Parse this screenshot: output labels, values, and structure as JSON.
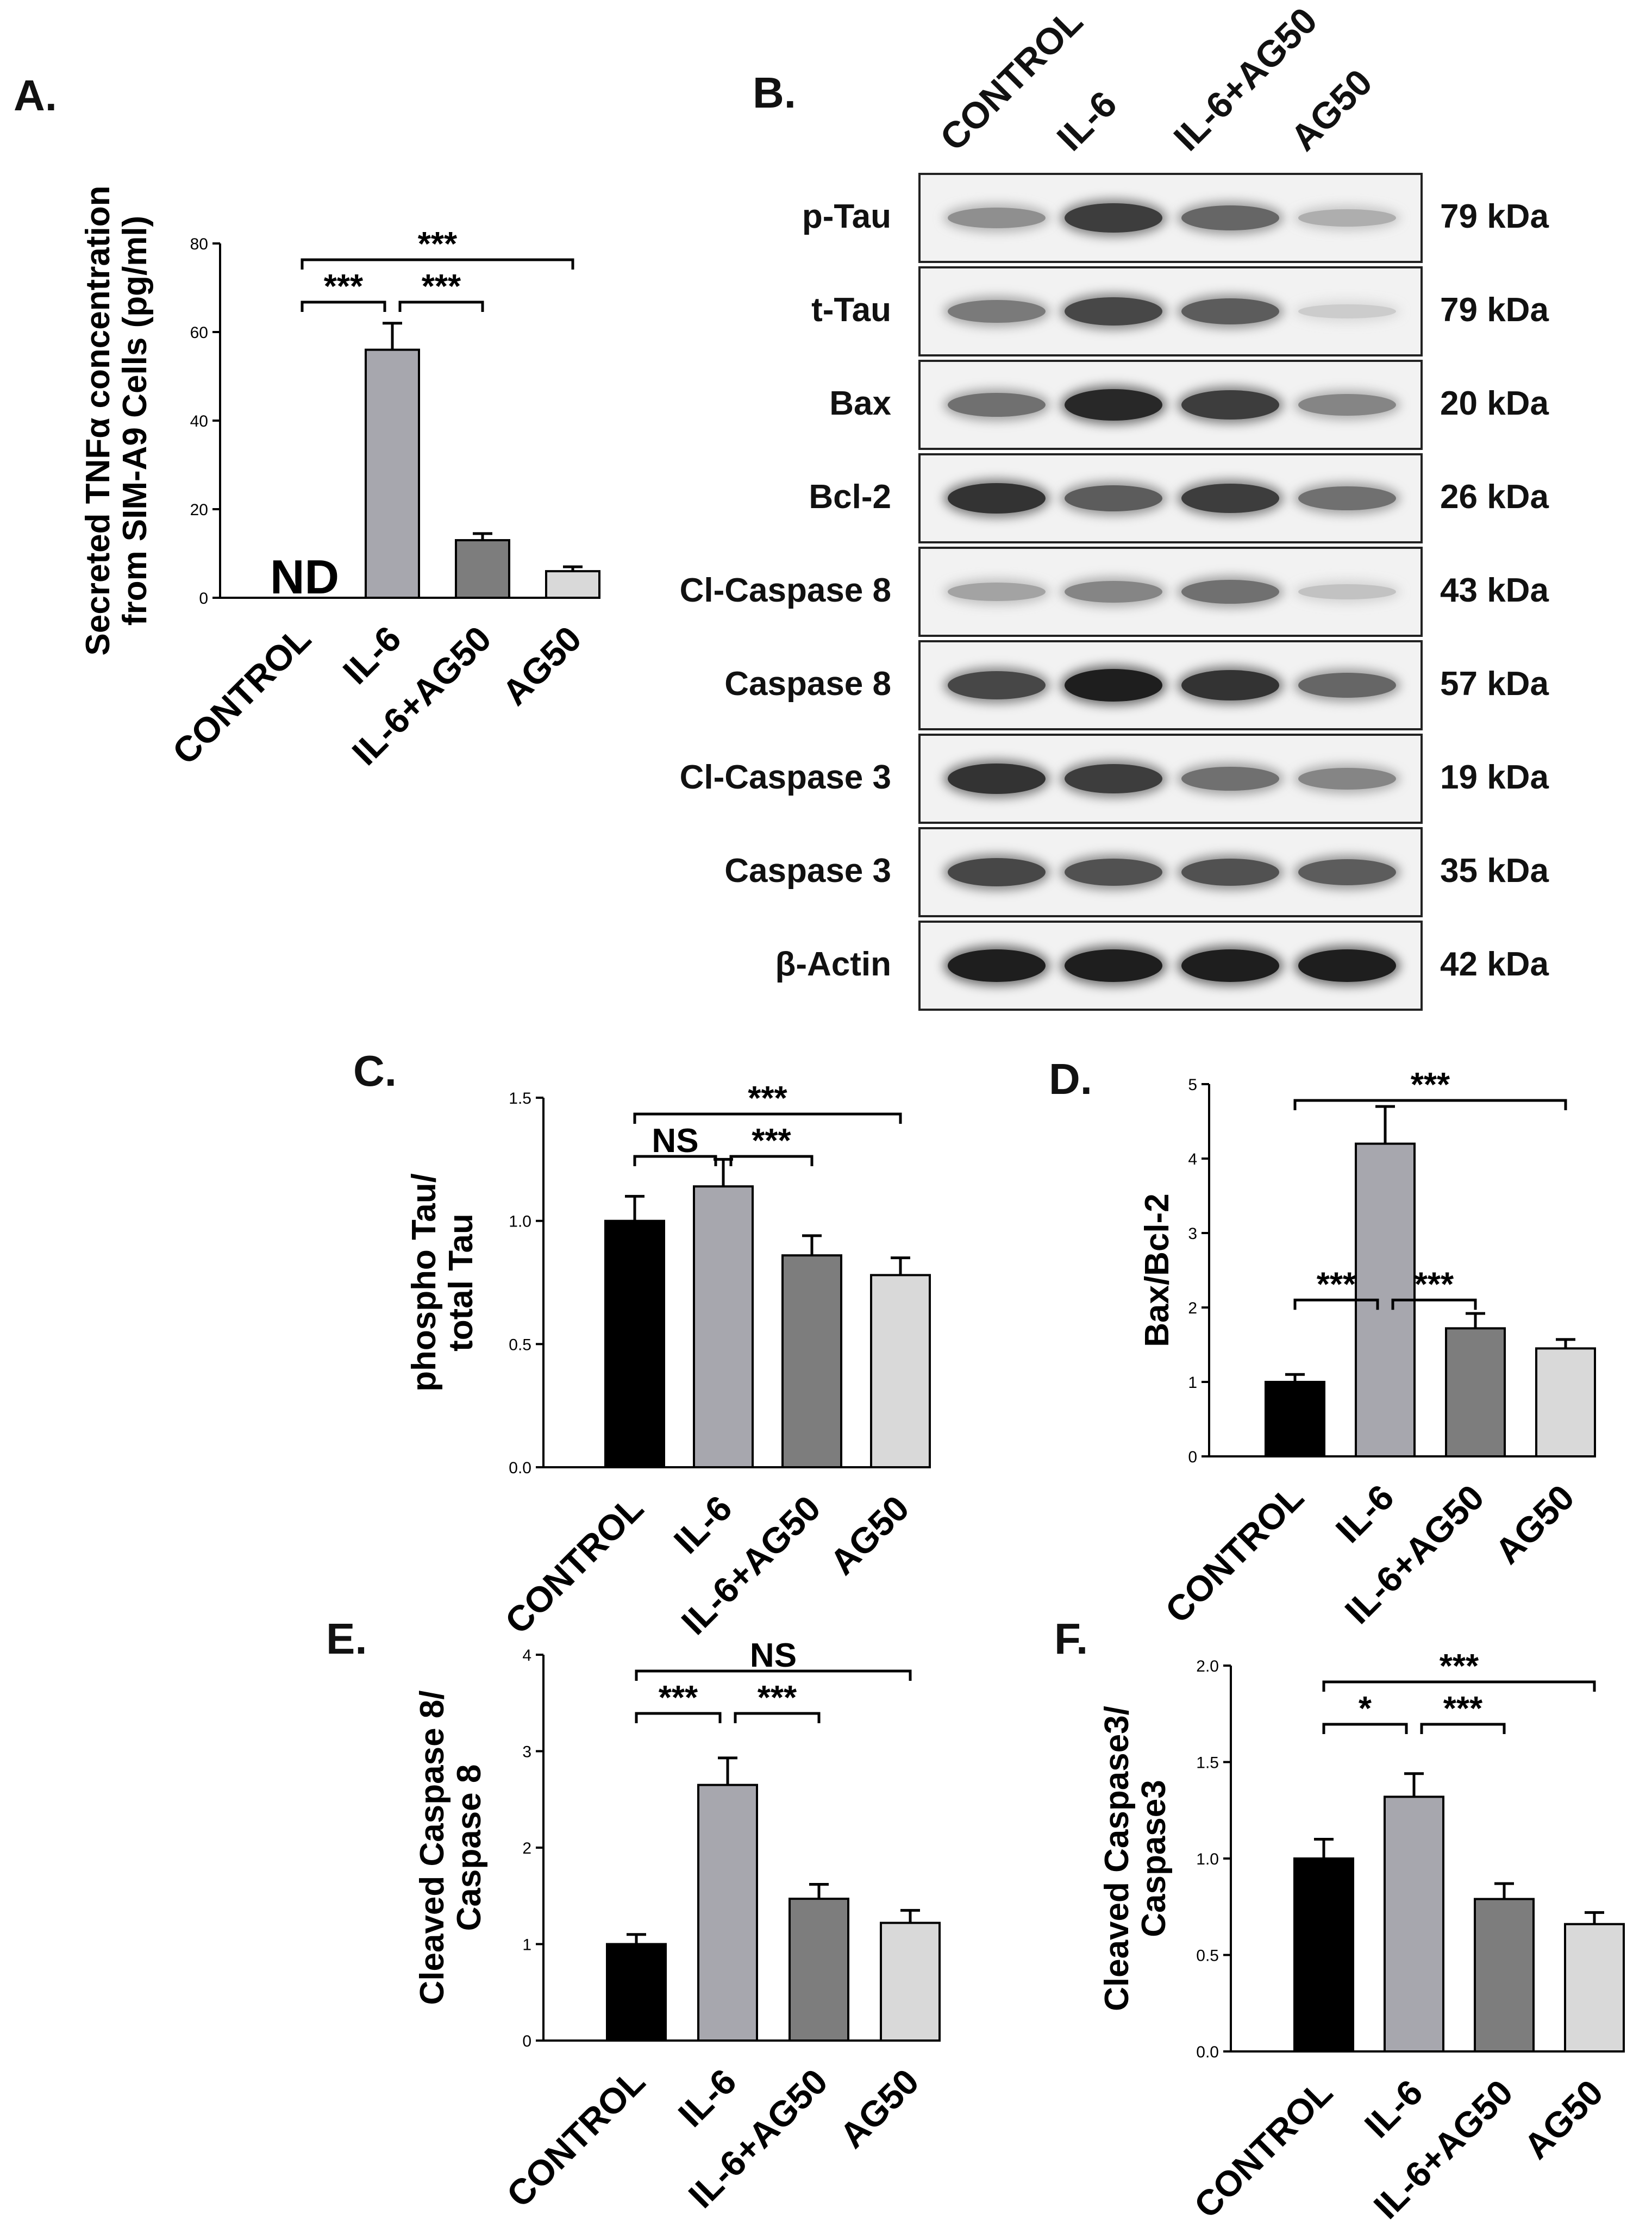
{
  "panel_letters": {
    "a": "A.",
    "b": "B.",
    "c": "C.",
    "d": "D.",
    "e": "E.",
    "f": "F."
  },
  "western_blot": {
    "lanes": [
      "CONTROL",
      "IL-6",
      "IL-6+AG50",
      "AG50"
    ],
    "rows": [
      {
        "label": "p-Tau",
        "kda": "79 kDa",
        "intensity": [
          0.45,
          0.85,
          0.65,
          0.3
        ]
      },
      {
        "label": "t-Tau",
        "kda": "79 kDa",
        "intensity": [
          0.55,
          0.8,
          0.7,
          0.15
        ]
      },
      {
        "label": "Bax",
        "kda": "20 kDa",
        "intensity": [
          0.6,
          0.95,
          0.85,
          0.5
        ]
      },
      {
        "label": "Bcl-2",
        "kda": "26 kDa",
        "intensity": [
          0.9,
          0.7,
          0.85,
          0.6
        ]
      },
      {
        "label": "Cl-Caspase 8",
        "kda": "43 kDa",
        "intensity": [
          0.35,
          0.5,
          0.6,
          0.2
        ]
      },
      {
        "label": "Caspase 8",
        "kda": "57 kDa",
        "intensity": [
          0.8,
          1.0,
          0.9,
          0.65
        ]
      },
      {
        "label": "Cl-Caspase 3",
        "kda": "19 kDa",
        "intensity": [
          0.9,
          0.85,
          0.6,
          0.5
        ]
      },
      {
        "label": "Caspase 3",
        "kda": "35 kDa",
        "intensity": [
          0.8,
          0.75,
          0.75,
          0.7
        ]
      },
      {
        "label": "β-Actin",
        "kda": "42 kDa",
        "intensity": [
          1.0,
          1.0,
          1.0,
          1.0
        ]
      }
    ]
  },
  "chart_data": [
    {
      "id": "A",
      "type": "bar",
      "categories": [
        "CONTROL",
        "IL-6",
        "IL-6+AG50",
        "AG50"
      ],
      "values": [
        0,
        56,
        13,
        6
      ],
      "errors": [
        0,
        6,
        1.5,
        1
      ],
      "ylabel": "Secreted TNFα concentration from SIM-A9 Cells (pg/ml)",
      "ylim": [
        0,
        80
      ],
      "yticks": [
        "0",
        "20",
        "40",
        "60",
        "80"
      ],
      "annotation": "ND",
      "colors": [
        "#000000",
        "#a7a7ae",
        "#7d7d7d",
        "#d9d9d9"
      ],
      "brackets": [
        {
          "from": 0,
          "to": 3,
          "label": "***"
        },
        {
          "from": 0,
          "to": 1,
          "label": "***"
        },
        {
          "from": 1,
          "to": 2,
          "label": "***"
        }
      ]
    },
    {
      "id": "C",
      "type": "bar",
      "categories": [
        "CONTROL",
        "IL-6",
        "IL-6+AG50",
        "AG50"
      ],
      "values": [
        1.0,
        1.14,
        0.86,
        0.78
      ],
      "errors": [
        0.1,
        0.11,
        0.08,
        0.07
      ],
      "ylabel": "phospho Tau/ total Tau",
      "ylim": [
        0,
        1.5
      ],
      "yticks": [
        "0.0",
        "0.5",
        "1.0",
        "1.5"
      ],
      "colors": [
        "#000000",
        "#a7a7ae",
        "#7d7d7d",
        "#d9d9d9"
      ],
      "brackets": [
        {
          "from": 0,
          "to": 3,
          "label": "***"
        },
        {
          "from": 0,
          "to": 1,
          "label": "NS"
        },
        {
          "from": 1,
          "to": 2,
          "label": "***"
        }
      ]
    },
    {
      "id": "D",
      "type": "bar",
      "categories": [
        "CONTROL",
        "IL-6",
        "IL-6+AG50",
        "AG50"
      ],
      "values": [
        1.0,
        4.2,
        1.72,
        1.45
      ],
      "errors": [
        0.1,
        0.5,
        0.2,
        0.12
      ],
      "ylabel": "Bax/Bcl-2",
      "ylim": [
        0,
        5
      ],
      "yticks": [
        "0",
        "1",
        "2",
        "3",
        "4",
        "5"
      ],
      "colors": [
        "#000000",
        "#a7a7ae",
        "#7d7d7d",
        "#d9d9d9"
      ],
      "brackets": [
        {
          "from": 0,
          "to": 3,
          "label": "***"
        },
        {
          "from": 0,
          "to": 1,
          "label": "***",
          "level": 2.1
        },
        {
          "from": 1,
          "to": 2,
          "label": "***",
          "level": 2.1
        }
      ]
    },
    {
      "id": "E",
      "type": "bar",
      "categories": [
        "CONTROL",
        "IL-6",
        "IL-6+AG50",
        "AG50"
      ],
      "values": [
        1.0,
        2.65,
        1.47,
        1.22
      ],
      "errors": [
        0.1,
        0.28,
        0.15,
        0.13
      ],
      "ylabel": "Cleaved Caspase 8/ Caspase 8",
      "ylim": [
        0,
        4
      ],
      "yticks": [
        "0",
        "1",
        "2",
        "3",
        "4"
      ],
      "colors": [
        "#000000",
        "#a7a7ae",
        "#7d7d7d",
        "#d9d9d9"
      ],
      "brackets": [
        {
          "from": 0,
          "to": 3,
          "label": "NS"
        },
        {
          "from": 0,
          "to": 1,
          "label": "***"
        },
        {
          "from": 1,
          "to": 2,
          "label": "***"
        }
      ]
    },
    {
      "id": "F",
      "type": "bar",
      "categories": [
        "CONTROL",
        "IL-6",
        "IL-6+AG50",
        "AG50"
      ],
      "values": [
        1.0,
        1.32,
        0.79,
        0.66
      ],
      "errors": [
        0.1,
        0.12,
        0.08,
        0.06
      ],
      "ylabel": "Cleaved Caspase3/ Caspase3",
      "ylim": [
        0,
        2.0
      ],
      "yticks": [
        "0.0",
        "0.5",
        "1.0",
        "1.5",
        "2.0"
      ],
      "colors": [
        "#000000",
        "#a7a7ae",
        "#7d7d7d",
        "#d9d9d9"
      ],
      "brackets": [
        {
          "from": 0,
          "to": 3,
          "label": "***"
        },
        {
          "from": 0,
          "to": 1,
          "label": "*"
        },
        {
          "from": 1,
          "to": 2,
          "label": "***"
        }
      ]
    }
  ]
}
